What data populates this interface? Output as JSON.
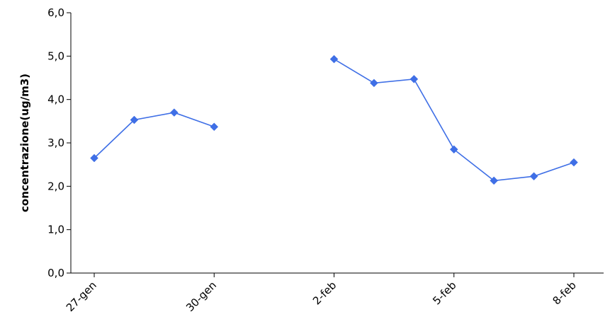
{
  "chart_data": {
    "type": "line",
    "title": "",
    "xlabel": "",
    "ylabel": "concentrazione(ug/m3)",
    "ylim": [
      0,
      6
    ],
    "yticks": [
      "0,0",
      "1,0",
      "2,0",
      "3,0",
      "4,0",
      "5,0",
      "6,0"
    ],
    "xlim": [
      "2000-01-27",
      "2000-02-08"
    ],
    "xticks": [
      {
        "date": "2000-01-27",
        "label": "27-gen"
      },
      {
        "date": "2000-01-30",
        "label": "30-gen"
      },
      {
        "date": "2000-02-02",
        "label": "2-feb"
      },
      {
        "date": "2000-02-05",
        "label": "5-feb"
      },
      {
        "date": "2000-02-08",
        "label": "8-feb"
      }
    ],
    "grid": false,
    "legend": "none",
    "series": [
      {
        "color": "#3f6fe6",
        "marker": "diamond",
        "points": [
          {
            "date": "2000-01-27",
            "value": 2.65
          },
          {
            "date": "2000-01-28",
            "value": 3.53
          },
          {
            "date": "2000-01-29",
            "value": 3.7
          },
          {
            "date": "2000-01-30",
            "value": 3.37
          },
          {
            "date": "2000-01-31",
            "value": null
          },
          {
            "date": "2000-02-01",
            "value": null
          },
          {
            "date": "2000-02-02",
            "value": 4.93
          },
          {
            "date": "2000-02-03",
            "value": 4.38
          },
          {
            "date": "2000-02-04",
            "value": 4.47
          },
          {
            "date": "2000-02-05",
            "value": 2.85
          },
          {
            "date": "2000-02-06",
            "value": 2.13
          },
          {
            "date": "2000-02-07",
            "value": 2.23
          },
          {
            "date": "2000-02-08",
            "value": 2.55
          }
        ]
      }
    ]
  }
}
